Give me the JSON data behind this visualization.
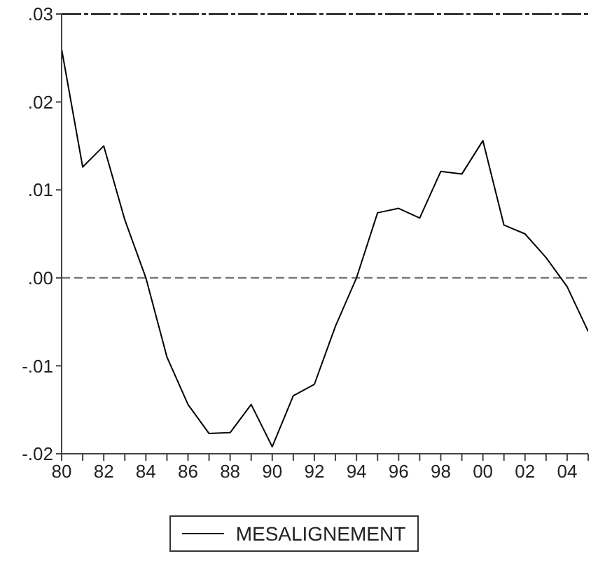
{
  "chart_data": {
    "type": "line",
    "x": [
      1980,
      1981,
      1982,
      1983,
      1984,
      1985,
      1986,
      1987,
      1988,
      1989,
      1990,
      1991,
      1992,
      1993,
      1994,
      1995,
      1996,
      1997,
      1998,
      1999,
      2000,
      2001,
      2002,
      2003,
      2004,
      2005
    ],
    "series": [
      {
        "name": "MESALIGNEMENT",
        "color": "#000000",
        "values": [
          0.026,
          0.0126,
          0.015,
          0.0066,
          0.0,
          -0.009,
          -0.0144,
          -0.0177,
          -0.0176,
          -0.0144,
          -0.0192,
          -0.0134,
          -0.0121,
          -0.0055,
          0.0,
          0.0074,
          0.0079,
          0.0068,
          0.0121,
          0.0118,
          0.0156,
          0.006,
          0.005,
          0.0023,
          -0.001,
          -0.0061
        ]
      }
    ],
    "xlim": [
      1980,
      2005
    ],
    "xticks": [
      {
        "value": 1980,
        "label": "80"
      },
      {
        "value": 1981,
        "label": null
      },
      {
        "value": 1982,
        "label": "82"
      },
      {
        "value": 1983,
        "label": null
      },
      {
        "value": 1984,
        "label": "84"
      },
      {
        "value": 1985,
        "label": null
      },
      {
        "value": 1986,
        "label": "86"
      },
      {
        "value": 1987,
        "label": null
      },
      {
        "value": 1988,
        "label": "88"
      },
      {
        "value": 1989,
        "label": null
      },
      {
        "value": 1990,
        "label": "90"
      },
      {
        "value": 1991,
        "label": null
      },
      {
        "value": 1992,
        "label": "92"
      },
      {
        "value": 1993,
        "label": null
      },
      {
        "value": 1994,
        "label": "94"
      },
      {
        "value": 1995,
        "label": null
      },
      {
        "value": 1996,
        "label": "96"
      },
      {
        "value": 1997,
        "label": null
      },
      {
        "value": 1998,
        "label": "98"
      },
      {
        "value": 1999,
        "label": null
      },
      {
        "value": 2000,
        "label": "00"
      },
      {
        "value": 2001,
        "label": null
      },
      {
        "value": 2002,
        "label": "02"
      },
      {
        "value": 2003,
        "label": null
      },
      {
        "value": 2004,
        "label": "04"
      },
      {
        "value": 2005,
        "label": null
      }
    ],
    "ylim": [
      -0.02,
      0.03
    ],
    "yticks": [
      {
        "value": -0.02,
        "label": "-.02"
      },
      {
        "value": -0.01,
        "label": "-.01"
      },
      {
        "value": 0,
        "label": ".00"
      },
      {
        "value": 0.01,
        "label": ".01"
      },
      {
        "value": 0.02,
        "label": ".02"
      },
      {
        "value": 0.03,
        "label": ".03"
      }
    ],
    "ref_lines": [
      {
        "axis": "y",
        "value": 0,
        "label": null,
        "color": "#666666",
        "line_style": "dashed"
      }
    ],
    "grid": false,
    "legend": "bottom",
    "marker": "none",
    "line_style": "solid"
  }
}
